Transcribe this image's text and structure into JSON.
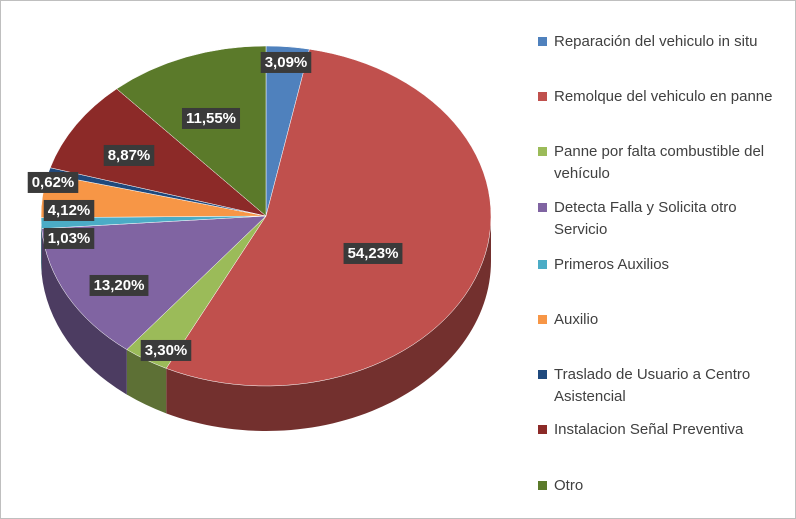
{
  "chart_data": {
    "type": "pie",
    "categories": [
      "Reparación del vehiculo in situ",
      "Remolque del vehiculo en panne",
      "Panne por falta combustible del vehículo",
      "Detecta Falla y Solicita otro Servicio",
      "Primeros Auxilios",
      "Auxilio",
      "Traslado de Usuario a Centro Asistencial",
      "Instalacion Señal Preventiva",
      "Otro"
    ],
    "values": [
      3.09,
      54.23,
      3.3,
      13.2,
      1.03,
      4.12,
      0.62,
      8.87,
      11.55
    ],
    "value_labels": [
      "3,09%",
      "54,23%",
      "3,30%",
      "13,20%",
      "1,03%",
      "4,12%",
      "0,62%",
      "8,87%",
      "11,55%"
    ],
    "colors": [
      "#4f81bd",
      "#c0504d",
      "#9bbb59",
      "#8064a2",
      "#4bacc6",
      "#f79646",
      "#1f497d",
      "#8c2a28",
      "#5b7a2a"
    ],
    "legend": "right"
  }
}
